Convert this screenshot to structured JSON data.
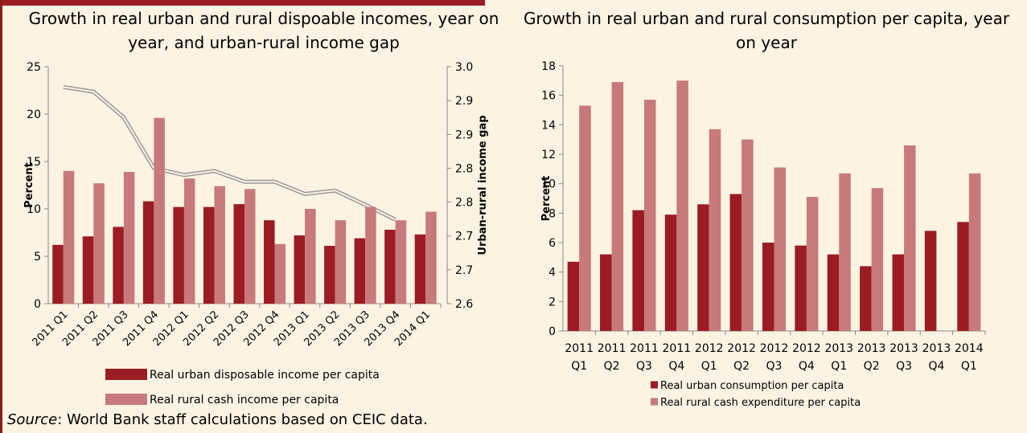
{
  "chart_data": [
    {
      "type": "bar",
      "title": "Growth in real urban and rural dispoable incomes, year on year, and urban-rural income gap",
      "ylabel": "Percent",
      "y2label": "Urban-rural income gap",
      "categories": [
        "2011 Q1",
        "2011 Q2",
        "2011 Q3",
        "2011 Q4",
        "2012 Q1",
        "2012 Q2",
        "2012 Q3",
        "2012 Q4",
        "2013 Q1",
        "2013 Q2",
        "2013 Q3",
        "2013 Q4",
        "2014 Q1"
      ],
      "series": [
        {
          "name": "Real urban disposable income per capita",
          "color": "#9b1c22",
          "values": [
            6.2,
            7.1,
            8.1,
            10.8,
            10.2,
            10.2,
            10.5,
            8.8,
            7.2,
            6.1,
            6.9,
            7.8,
            7.3
          ]
        },
        {
          "name": "Real rural cash income per capita",
          "color": "#c8797b",
          "values": [
            14.0,
            12.7,
            13.9,
            19.6,
            13.2,
            12.4,
            12.1,
            6.3,
            10.0,
            8.8,
            10.2,
            8.8,
            9.7
          ]
        },
        {
          "type": "line",
          "axis": "y2",
          "color": "#999999",
          "values": [
            2.92,
            2.913,
            2.875,
            2.8,
            2.79,
            2.796,
            2.78,
            2.78,
            2.762,
            2.767,
            2.746,
            2.724,
            null
          ]
        }
      ],
      "ylim": [
        0,
        25
      ],
      "yticks": [
        0,
        5,
        10,
        15,
        20,
        25
      ],
      "y2lim": [
        2.6,
        2.95
      ],
      "y2ticks": [
        2.6,
        {
          "value": 2.65,
          "label": "2.7"
        },
        2.7,
        {
          "value": 2.75,
          "label": "2.8"
        },
        2.8,
        {
          "value": 2.85,
          "label": "2.9"
        },
        2.9,
        {
          "value": 2.95,
          "label": "3.0"
        }
      ],
      "grid": false,
      "x_label_rotation": -45
    },
    {
      "type": "bar",
      "title": "Growth in real urban and rural consumption per capita, year on year",
      "ylabel": "Percent",
      "categories": [
        "2011 Q1",
        "2011 Q2",
        "2011 Q3",
        "2011 Q4",
        "2012 Q1",
        "2012 Q2",
        "2012 Q3",
        "2012 Q4",
        "2013 Q1",
        "2013 Q2",
        "2013 Q3",
        "2013 Q4",
        "2014 Q1"
      ],
      "series": [
        {
          "name": "Real urban consumption per capita",
          "color": "#9b1c22",
          "values": [
            4.7,
            5.2,
            8.2,
            7.9,
            8.6,
            9.3,
            6.0,
            5.8,
            5.2,
            4.4,
            5.2,
            6.8,
            7.4
          ]
        },
        {
          "name": "Real rural cash expenditure per capita",
          "color": "#c8797b",
          "values": [
            15.3,
            16.9,
            15.7,
            17.0,
            13.7,
            13.0,
            11.1,
            9.1,
            10.7,
            9.7,
            12.6,
            null,
            10.7
          ]
        }
      ],
      "ylim": [
        0,
        18
      ],
      "yticks": [
        0,
        2,
        4,
        6,
        8,
        10,
        12,
        14,
        16,
        18
      ],
      "grid": false,
      "x_label_rotation": 0
    }
  ],
  "source": {
    "label": "Source",
    "text": ": World Bank staff calculations based on CEIC data."
  }
}
